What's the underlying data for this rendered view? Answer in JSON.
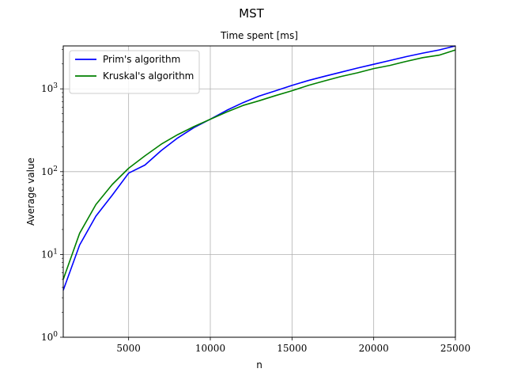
{
  "figure": {
    "suptitle": "MST"
  },
  "chart_data": {
    "type": "line",
    "title": "Time spent [ms]",
    "xlabel": "n",
    "ylabel": "Average value",
    "xlim": [
      1000,
      25000
    ],
    "ylim": [
      1,
      3300
    ],
    "yscale": "log",
    "grid": true,
    "legend_position": "top-left",
    "xticks": [
      5000,
      10000,
      15000,
      20000,
      25000
    ],
    "xtick_labels": [
      "5000",
      "10000",
      "15000",
      "20000",
      "25000"
    ],
    "yticks": [
      1,
      10,
      100,
      1000
    ],
    "ytick_labels": [
      {
        "base": "10",
        "exp": "0"
      },
      {
        "base": "10",
        "exp": "1"
      },
      {
        "base": "10",
        "exp": "2"
      },
      {
        "base": "10",
        "exp": "3"
      }
    ],
    "series": [
      {
        "name": "Prim's algorithm",
        "color": "#0000ff",
        "x": [
          1000,
          2000,
          3000,
          4000,
          5000,
          6000,
          7000,
          8000,
          9000,
          10000,
          11000,
          12000,
          13000,
          14000,
          15000,
          16000,
          17000,
          18000,
          19000,
          20000,
          21000,
          22000,
          23000,
          24000,
          25000
        ],
        "y": [
          3.7,
          13,
          29,
          52,
          96,
          120,
          180,
          255,
          340,
          430,
          550,
          680,
          820,
          950,
          1100,
          1260,
          1420,
          1590,
          1780,
          1980,
          2200,
          2450,
          2700,
          2950,
          3300
        ]
      },
      {
        "name": "Kruskal's algorithm",
        "color": "#008000",
        "x": [
          1000,
          2000,
          3000,
          4000,
          5000,
          6000,
          7000,
          8000,
          9000,
          10000,
          11000,
          12000,
          13000,
          14000,
          15000,
          16000,
          17000,
          18000,
          19000,
          20000,
          21000,
          22000,
          23000,
          24000,
          25000
        ],
        "y": [
          5,
          18,
          40,
          70,
          110,
          155,
          215,
          280,
          350,
          430,
          525,
          630,
          720,
          830,
          950,
          1100,
          1250,
          1410,
          1560,
          1760,
          1920,
          2150,
          2380,
          2550,
          2950
        ]
      }
    ]
  }
}
